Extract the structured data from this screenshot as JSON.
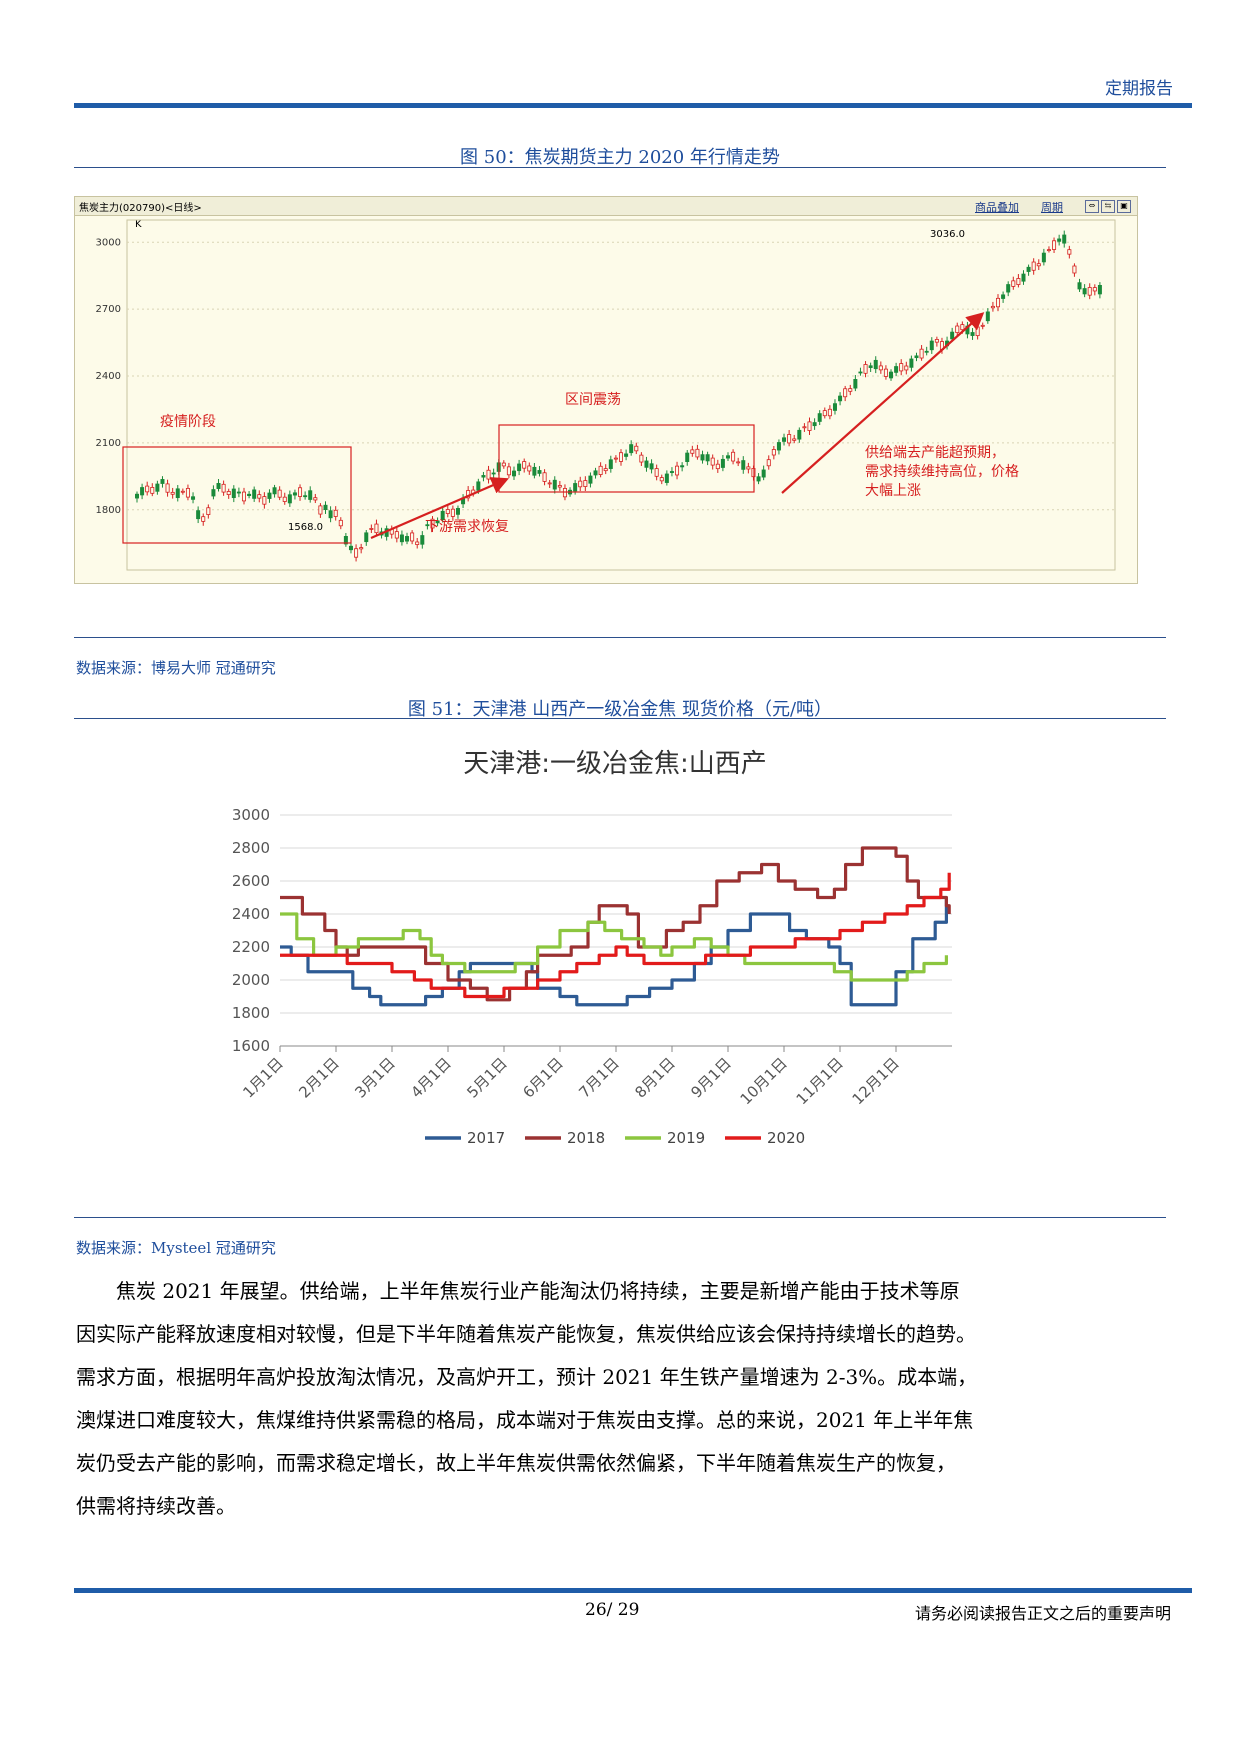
{
  "header": {
    "report_type": "定期报告"
  },
  "figure50": {
    "caption": "图 50：焦炭期货主力 2020 年行情走势",
    "chart_title": "焦炭主力(020790)<日线>",
    "toolbar": [
      "商品叠加",
      "周期"
    ],
    "axis_label": "K",
    "source": "数据来源：博易大师 冠通研究",
    "chart_data": {
      "type": "candlestick",
      "yticks": [
        1800,
        2100,
        2400,
        2700,
        3000
      ],
      "ylim": [
        1530,
        3100
      ],
      "close_path": [
        1870,
        1880,
        1890,
        1900,
        1920,
        1890,
        1880,
        1870,
        1880,
        1860,
        1740,
        1760,
        1880,
        1900,
        1890,
        1880,
        1870,
        1860,
        1880,
        1860,
        1840,
        1870,
        1880,
        1860,
        1850,
        1860,
        1880,
        1870,
        1860,
        1800,
        1820,
        1760,
        1790,
        1680,
        1620,
        1600,
        1660,
        1700,
        1720,
        1700,
        1690,
        1700,
        1680,
        1660,
        1680,
        1640,
        1720,
        1740,
        1760,
        1780,
        1790,
        1800,
        1840,
        1880,
        1900,
        1940,
        1960,
        1980,
        2000,
        1980,
        1970,
        1990,
        2000,
        1980,
        1960,
        1940,
        1920,
        1900,
        1880,
        1890,
        1900,
        1920,
        1940,
        1960,
        1980,
        2000,
        2020,
        2040,
        2060,
        2080,
        2040,
        2010,
        1980,
        1950,
        1940,
        1960,
        1980,
        2020,
        2050,
        2060,
        2040,
        2020,
        2000,
        2010,
        2030,
        2040,
        2010,
        1980,
        1970,
        1940,
        1970,
        2060,
        2090,
        2110,
        2120,
        2130,
        2160,
        2180,
        2200,
        2220,
        2240,
        2270,
        2300,
        2340,
        2360,
        2410,
        2440,
        2460,
        2430,
        2420,
        2410,
        2430,
        2440,
        2460,
        2480,
        2510,
        2530,
        2550,
        2540,
        2560,
        2590,
        2630,
        2610,
        2570,
        2620,
        2660,
        2700,
        2740,
        2780,
        2800,
        2830,
        2850,
        2880,
        2900,
        2930,
        2960,
        3000,
        3036,
        2960,
        2880,
        2790,
        2760,
        2800,
        2790
      ],
      "annotations": {
        "high": "3036.0",
        "low": "1568.0",
        "box1": "疫情阶段",
        "box2": "区间震荡",
        "arrow1": "下游需求恢复",
        "arrow2_lines": [
          "供给端去产能超预期，",
          "需求持续维持高位，价格",
          "大幅上涨"
        ]
      }
    }
  },
  "figure51": {
    "caption": "图 51：天津港 山西产一级冶金焦 现货价格（元/吨）",
    "source": "数据来源：Mysteel 冠通研究",
    "chart_data": {
      "type": "line",
      "title": "天津港:一级冶金焦:山西产",
      "categories": [
        "1月1日",
        "2月1日",
        "3月1日",
        "4月1日",
        "5月1日",
        "6月1日",
        "7月1日",
        "8月1日",
        "9月1日",
        "10月1日",
        "11月1日",
        "12月1日"
      ],
      "ylim": [
        1600,
        3000
      ],
      "yticks": [
        1600,
        1800,
        2000,
        2200,
        2400,
        2600,
        2800,
        3000
      ],
      "series": [
        {
          "name": "2017",
          "color": "#2e5b94",
          "points": [
            [
              0,
              2200
            ],
            [
              0.2,
              2150
            ],
            [
              0.5,
              2050
            ],
            [
              1.2,
              2050
            ],
            [
              1.3,
              1950
            ],
            [
              1.6,
              1900
            ],
            [
              1.8,
              1850
            ],
            [
              2.2,
              1850
            ],
            [
              2.6,
              1900
            ],
            [
              2.9,
              1950
            ],
            [
              3.2,
              2050
            ],
            [
              3.4,
              2100
            ],
            [
              4.1,
              2100
            ],
            [
              4.5,
              2050
            ],
            [
              4.6,
              1950
            ],
            [
              5.0,
              1900
            ],
            [
              5.3,
              1850
            ],
            [
              5.9,
              1850
            ],
            [
              6.2,
              1900
            ],
            [
              6.6,
              1950
            ],
            [
              7.0,
              2000
            ],
            [
              7.4,
              2100
            ],
            [
              7.7,
              2200
            ],
            [
              8.0,
              2300
            ],
            [
              8.4,
              2400
            ],
            [
              8.9,
              2400
            ],
            [
              9.1,
              2300
            ],
            [
              9.4,
              2250
            ],
            [
              9.8,
              2200
            ],
            [
              10.0,
              2100
            ],
            [
              10.2,
              1850
            ],
            [
              10.8,
              1850
            ],
            [
              11.0,
              2050
            ],
            [
              11.3,
              2250
            ],
            [
              11.7,
              2350
            ],
            [
              11.9,
              2500
            ]
          ]
        },
        {
          "name": "2018",
          "color": "#9b3232",
          "points": [
            [
              0,
              2500
            ],
            [
              0.4,
              2400
            ],
            [
              0.8,
              2300
            ],
            [
              1.0,
              2200
            ],
            [
              1.2,
              2150
            ],
            [
              1.4,
              2200
            ],
            [
              1.8,
              2200
            ],
            [
              2.4,
              2200
            ],
            [
              2.6,
              2100
            ],
            [
              3.0,
              2000
            ],
            [
              3.4,
              1950
            ],
            [
              3.7,
              1880
            ],
            [
              4.1,
              1950
            ],
            [
              4.4,
              2050
            ],
            [
              4.6,
              2150
            ],
            [
              4.9,
              2150
            ],
            [
              5.2,
              2200
            ],
            [
              5.5,
              2350
            ],
            [
              5.7,
              2450
            ],
            [
              6.0,
              2450
            ],
            [
              6.2,
              2400
            ],
            [
              6.4,
              2200
            ],
            [
              6.6,
              2200
            ],
            [
              6.9,
              2300
            ],
            [
              7.2,
              2350
            ],
            [
              7.5,
              2450
            ],
            [
              7.8,
              2600
            ],
            [
              8.2,
              2650
            ],
            [
              8.6,
              2700
            ],
            [
              8.9,
              2600
            ],
            [
              9.2,
              2550
            ],
            [
              9.6,
              2500
            ],
            [
              9.9,
              2550
            ],
            [
              10.1,
              2700
            ],
            [
              10.4,
              2800
            ],
            [
              10.8,
              2800
            ],
            [
              11.0,
              2750
            ],
            [
              11.2,
              2600
            ],
            [
              11.4,
              2500
            ],
            [
              11.9,
              2450
            ],
            [
              11.95,
              2400
            ]
          ]
        },
        {
          "name": "2019",
          "color": "#8cc63f",
          "points": [
            [
              0,
              2400
            ],
            [
              0.3,
              2250
            ],
            [
              0.6,
              2150
            ],
            [
              1.0,
              2200
            ],
            [
              1.4,
              2250
            ],
            [
              1.8,
              2250
            ],
            [
              2.2,
              2300
            ],
            [
              2.5,
              2250
            ],
            [
              2.7,
              2150
            ],
            [
              2.9,
              2100
            ],
            [
              3.3,
              2050
            ],
            [
              3.8,
              2050
            ],
            [
              4.2,
              2100
            ],
            [
              4.6,
              2200
            ],
            [
              5.0,
              2300
            ],
            [
              5.5,
              2350
            ],
            [
              5.8,
              2300
            ],
            [
              6.1,
              2250
            ],
            [
              6.5,
              2200
            ],
            [
              6.8,
              2150
            ],
            [
              7.0,
              2200
            ],
            [
              7.4,
              2250
            ],
            [
              7.7,
              2200
            ],
            [
              8.0,
              2150
            ],
            [
              8.3,
              2100
            ],
            [
              8.6,
              2100
            ],
            [
              9.0,
              2100
            ],
            [
              9.5,
              2100
            ],
            [
              9.9,
              2050
            ],
            [
              10.2,
              2000
            ],
            [
              10.6,
              2000
            ],
            [
              10.9,
              2000
            ],
            [
              11.2,
              2050
            ],
            [
              11.5,
              2100
            ],
            [
              11.9,
              2150
            ]
          ]
        },
        {
          "name": "2020",
          "color": "#e21b1b",
          "points": [
            [
              0,
              2150
            ],
            [
              0.5,
              2150
            ],
            [
              1.0,
              2150
            ],
            [
              1.2,
              2100
            ],
            [
              1.5,
              2100
            ],
            [
              2.0,
              2050
            ],
            [
              2.4,
              2000
            ],
            [
              2.7,
              1950
            ],
            [
              3.0,
              1950
            ],
            [
              3.3,
              1900
            ],
            [
              3.6,
              1900
            ],
            [
              4.0,
              1950
            ],
            [
              4.4,
              1950
            ],
            [
              4.6,
              2000
            ],
            [
              5.0,
              2050
            ],
            [
              5.3,
              2100
            ],
            [
              5.7,
              2150
            ],
            [
              6.0,
              2200
            ],
            [
              6.2,
              2150
            ],
            [
              6.5,
              2100
            ],
            [
              6.9,
              2100
            ],
            [
              7.3,
              2100
            ],
            [
              7.6,
              2150
            ],
            [
              8.0,
              2150
            ],
            [
              8.4,
              2200
            ],
            [
              8.8,
              2200
            ],
            [
              9.2,
              2250
            ],
            [
              9.6,
              2250
            ],
            [
              10.0,
              2300
            ],
            [
              10.4,
              2350
            ],
            [
              10.8,
              2400
            ],
            [
              11.2,
              2450
            ],
            [
              11.5,
              2500
            ],
            [
              11.8,
              2550
            ],
            [
              11.95,
              2650
            ]
          ]
        }
      ]
    }
  },
  "paragraph_lines": [
    "焦炭 2021 年展望。供给端，上半年焦炭行业产能淘汰仍将持续，主要是新增产能由于技术等原",
    "因实际产能释放速度相对较慢，但是下半年随着焦炭产能恢复，焦炭供给应该会保持持续增长的趋势。",
    "需求方面，根据明年高炉投放淘汰情况，及高炉开工，预计 2021 年生铁产量增速为 2-3%。成本端，",
    "澳煤进口难度较大，焦煤维持供紧需稳的格局，成本端对于焦炭由支撑。总的来说，2021 年上半年焦",
    "炭仍受去产能的影响，而需求稳定增长，故上半年焦炭供需依然偏紧，下半年随着焦炭生产的恢复，",
    "供需将持续改善。"
  ],
  "footer": {
    "page": "26/ 29",
    "disclaimer": "请务必阅读报告正文之后的重要声明"
  }
}
